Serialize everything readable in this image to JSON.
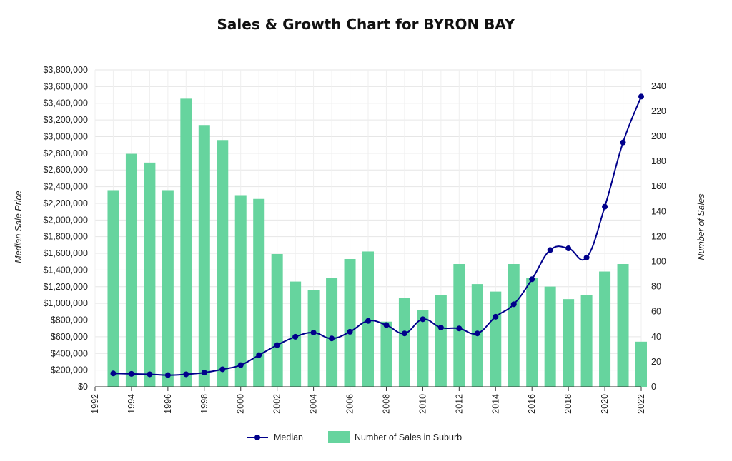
{
  "chart_data": {
    "type": "bar",
    "title": "Sales & Growth Chart for BYRON BAY",
    "ylabel_left": "Median Sale Price",
    "ylabel_right": "Number of Sales",
    "x_ticks": [
      "1992",
      "1994",
      "1996",
      "1998",
      "2000",
      "2002",
      "2004",
      "2006",
      "2008",
      "2010",
      "2012",
      "2014",
      "2016",
      "2018",
      "2020",
      "2022"
    ],
    "y_left_ticks": [
      "$0",
      "$200,000",
      "$400,000",
      "$600,000",
      "$800,000",
      "$1,000,000",
      "$1,200,000",
      "$1,400,000",
      "$1,600,000",
      "$1,800,000",
      "$2,000,000",
      "$2,200,000",
      "$2,400,000",
      "$2,600,000",
      "$2,800,000",
      "$3,000,000",
      "$3,200,000",
      "$3,400,000",
      "$3,600,000",
      "$3,800,000"
    ],
    "y_right_ticks": [
      "0",
      "20",
      "40",
      "60",
      "80",
      "100",
      "120",
      "140",
      "160",
      "180",
      "200",
      "220",
      "240"
    ],
    "ylim_left": [
      0,
      3800000
    ],
    "ylim_right": [
      0,
      253
    ],
    "xlim": [
      1992,
      2022
    ],
    "grid": true,
    "legend_position": "bottom",
    "x": [
      1993,
      1994,
      1995,
      1996,
      1997,
      1998,
      1999,
      2000,
      2001,
      2002,
      2003,
      2004,
      2005,
      2006,
      2007,
      2008,
      2009,
      2010,
      2011,
      2012,
      2013,
      2014,
      2015,
      2016,
      2017,
      2018,
      2019,
      2020,
      2021,
      2022
    ],
    "series": [
      {
        "name": "Number of Sales in Suburb",
        "kind": "bar",
        "axis": "right",
        "color": "#66d49e",
        "values": [
          157,
          186,
          179,
          157,
          230,
          209,
          197,
          153,
          150,
          106,
          84,
          77,
          87,
          102,
          108,
          52,
          71,
          61,
          73,
          98,
          82,
          76,
          98,
          87,
          80,
          70,
          73,
          92,
          98,
          36
        ]
      },
      {
        "name": "Median",
        "kind": "line",
        "axis": "left",
        "color": "#00008b",
        "values": [
          160000,
          155000,
          150000,
          140000,
          150000,
          170000,
          210000,
          260000,
          380000,
          500000,
          600000,
          650000,
          580000,
          660000,
          790000,
          740000,
          640000,
          810000,
          710000,
          700000,
          640000,
          840000,
          990000,
          1290000,
          1640000,
          1660000,
          1550000,
          2160000,
          2930000,
          3480000
        ]
      }
    ]
  }
}
